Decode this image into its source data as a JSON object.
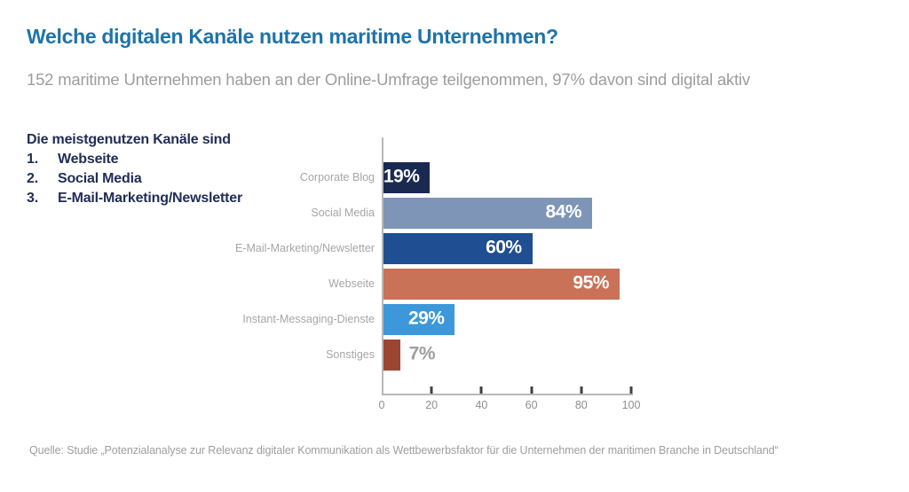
{
  "page": {
    "title": "Welche digitalen Kanäle nutzen maritime Unternehmen?",
    "subtitle": "152 maritime Unternehmen haben an der Online-Umfrage teilgenommen, 97% davon sind digital aktiv",
    "source": "Quelle: Studie „Potenzialanalyse zur Relevanz digitaler Kommunikation als Wettbewerbsfaktor für die Unternehmen der maritimen Branche in Deutschland“"
  },
  "key_findings": {
    "heading": "Die meistgenutzen Kanäle sind",
    "items": [
      {
        "rank": "1.",
        "label": "Webseite"
      },
      {
        "rank": "2.",
        "label": "Social Media"
      },
      {
        "rank": "3.",
        "label": "E-Mail-Marketing/Newsletter"
      }
    ]
  },
  "chart_data": {
    "type": "bar",
    "orientation": "horizontal",
    "title": "",
    "xlabel": "",
    "ylabel": "",
    "categories": [
      "Corporate Blog",
      "Social Media",
      "E-Mail-Marketing/Newsletter",
      "Webseite",
      "Instant-Messaging-Dienste",
      "Sonstiges"
    ],
    "values": [
      19,
      84,
      60,
      95,
      29,
      7
    ],
    "value_suffix": "%",
    "bar_colors": [
      "#1a2950",
      "#7e95b7",
      "#1f4f92",
      "#c97257",
      "#3c98da",
      "#9d4534"
    ],
    "xlim": [
      0,
      100
    ],
    "x_ticks": [
      0,
      20,
      40,
      60,
      80,
      100
    ],
    "grid": false,
    "legend": false,
    "outside_label_below": 10
  },
  "colors": {
    "title": "#1e73a9",
    "subtitle": "#9d9d9d",
    "key_findings_text": "#202e57",
    "category_label": "#a6a6a6",
    "value_label_inside": "#ffffff",
    "value_label_outside": "#9e9e9e",
    "axis_line": "#b8b8b8",
    "tick_mark": "#3f3f3f",
    "background": "#ffffff"
  }
}
